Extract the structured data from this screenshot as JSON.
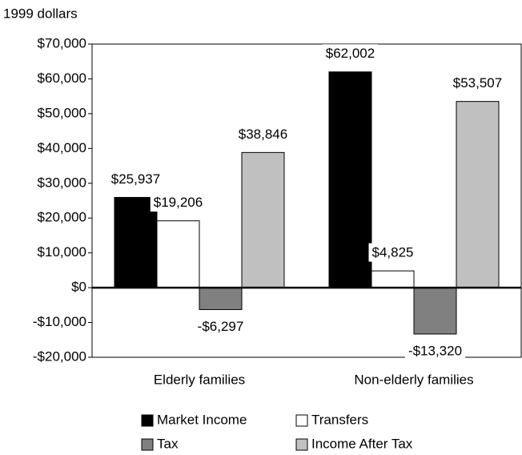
{
  "chart_data": {
    "type": "bar",
    "y_axis_label": "1999 dollars",
    "categories": [
      "Elderly families",
      "Non-elderly families"
    ],
    "series": [
      {
        "name": "Market Income",
        "color": "#000000",
        "values": [
          25937,
          62002
        ],
        "value_labels": [
          "$25,937",
          "$62,002"
        ]
      },
      {
        "name": "Transfers",
        "color": "#ffffff",
        "values": [
          19206,
          4825
        ],
        "value_labels": [
          "$19,206",
          "$4,825"
        ]
      },
      {
        "name": "Tax",
        "color": "#808080",
        "values": [
          -6297,
          -13320
        ],
        "value_labels": [
          "-$6,297",
          "-$13,320"
        ]
      },
      {
        "name": "Income After Tax",
        "color": "#c0c0c0",
        "values": [
          38846,
          53507
        ],
        "value_labels": [
          "$38,846",
          "$53,507"
        ]
      }
    ],
    "ylim": [
      -20000,
      70000
    ],
    "yticks": [
      {
        "value": -20000,
        "label": "-$20,000"
      },
      {
        "value": -10000,
        "label": "-$10,000"
      },
      {
        "value": 0,
        "label": "$0"
      },
      {
        "value": 10000,
        "label": "$10,000"
      },
      {
        "value": 20000,
        "label": "$20,000"
      },
      {
        "value": 30000,
        "label": "$30,000"
      },
      {
        "value": 40000,
        "label": "$40,000"
      },
      {
        "value": 50000,
        "label": "$50,000"
      },
      {
        "value": 60000,
        "label": "$60,000"
      },
      {
        "value": 70000,
        "label": "$70,000"
      }
    ],
    "grid": false
  }
}
